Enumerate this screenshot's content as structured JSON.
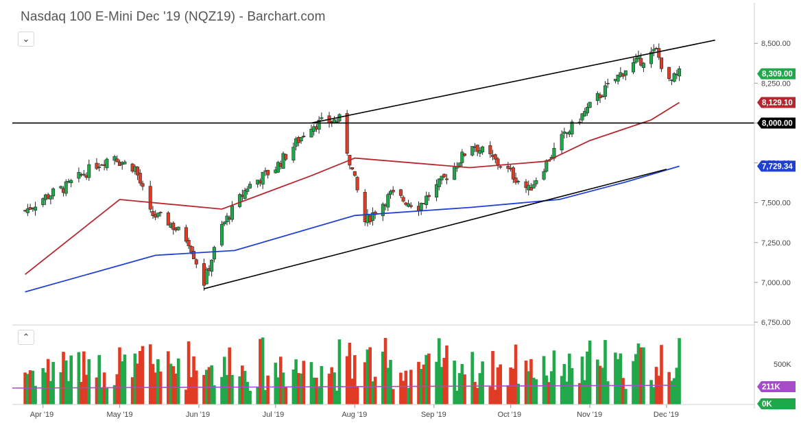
{
  "header": {
    "title": "Nasdaq 100 E-Mini Dec '19 (NQZ19) - Barchart.com"
  },
  "controls": {
    "collapse_icon": "chevron-down-icon",
    "volume_expand_icon": "chevron-up-icon"
  },
  "colors": {
    "up": "#20a84a",
    "down": "#e03b24",
    "ma50": "#b5272d",
    "ma200": "#1f3fd6",
    "trend": "#000000",
    "vol_ma": "#a64cc9",
    "label_price": "#1fa84a",
    "label_ma50": "#b5272d",
    "label_ma200": "#1f3fd6",
    "label_vol": "#a64cc9"
  },
  "chart_data": {
    "type": "candlestick",
    "title": "Nasdaq 100 E-Mini Dec '19 (NQZ19) - Barchart.com",
    "x_ticks": [
      "Apr '19",
      "May '19",
      "Jun '19",
      "Jul '19",
      "Aug '19",
      "Sep '19",
      "Oct '19",
      "Nov '19",
      "Dec '19"
    ],
    "y_ticks": [
      "8,500.00",
      "8,250.00",
      "8,000.00",
      "7,750.00",
      "7,500.00",
      "7,250.00",
      "7,000.00",
      "6,750.00"
    ],
    "ylim": [
      6750,
      8600
    ],
    "close_points": [
      {
        "x": "2019-03-25",
        "v": 7450
      },
      {
        "x": "2019-04-01",
        "v": 7530
      },
      {
        "x": "2019-04-10",
        "v": 7600
      },
      {
        "x": "2019-04-22",
        "v": 7740
      },
      {
        "x": "2019-04-29",
        "v": 7800
      },
      {
        "x": "2019-05-01",
        "v": 7760
      },
      {
        "x": "2019-05-07",
        "v": 7720
      },
      {
        "x": "2019-05-13",
        "v": 7430
      },
      {
        "x": "2019-05-20",
        "v": 7380
      },
      {
        "x": "2019-05-28",
        "v": 7260
      },
      {
        "x": "2019-06-03",
        "v": 7000
      },
      {
        "x": "2019-06-10",
        "v": 7350
      },
      {
        "x": "2019-06-20",
        "v": 7600
      },
      {
        "x": "2019-07-01",
        "v": 7720
      },
      {
        "x": "2019-07-15",
        "v": 7990
      },
      {
        "x": "2019-07-26",
        "v": 8020
      },
      {
        "x": "2019-08-05",
        "v": 7380
      },
      {
        "x": "2019-08-15",
        "v": 7550
      },
      {
        "x": "2019-08-26",
        "v": 7480
      },
      {
        "x": "2019-09-05",
        "v": 7650
      },
      {
        "x": "2019-09-16",
        "v": 7870
      },
      {
        "x": "2019-09-30",
        "v": 7700
      },
      {
        "x": "2019-10-08",
        "v": 7580
      },
      {
        "x": "2019-10-21",
        "v": 7900
      },
      {
        "x": "2019-11-04",
        "v": 8160
      },
      {
        "x": "2019-11-15",
        "v": 8340
      },
      {
        "x": "2019-11-27",
        "v": 8450
      },
      {
        "x": "2019-12-02",
        "v": 8250
      },
      {
        "x": "2019-12-06",
        "v": 8309
      }
    ],
    "ma50": [
      {
        "x": "2019-03-25",
        "v": 7050
      },
      {
        "x": "2019-05-01",
        "v": 7520
      },
      {
        "x": "2019-06-10",
        "v": 7460
      },
      {
        "x": "2019-07-15",
        "v": 7670
      },
      {
        "x": "2019-08-01",
        "v": 7780
      },
      {
        "x": "2019-09-15",
        "v": 7720
      },
      {
        "x": "2019-10-15",
        "v": 7760
      },
      {
        "x": "2019-11-01",
        "v": 7890
      },
      {
        "x": "2019-11-25",
        "v": 8020
      },
      {
        "x": "2019-12-06",
        "v": 8129.1
      }
    ],
    "ma200": [
      {
        "x": "2019-03-25",
        "v": 6940
      },
      {
        "x": "2019-05-15",
        "v": 7170
      },
      {
        "x": "2019-06-15",
        "v": 7200
      },
      {
        "x": "2019-08-01",
        "v": 7420
      },
      {
        "x": "2019-09-15",
        "v": 7470
      },
      {
        "x": "2019-10-20",
        "v": 7520
      },
      {
        "x": "2019-11-15",
        "v": 7630
      },
      {
        "x": "2019-12-06",
        "v": 7729.34
      }
    ],
    "last": {
      "price": "8,309.00",
      "ma50": "8,129.10",
      "ma200": "7,729.34",
      "level": "8,000.00",
      "volume": "211K",
      "oi": "0K"
    },
    "volume_tick": "500K"
  }
}
